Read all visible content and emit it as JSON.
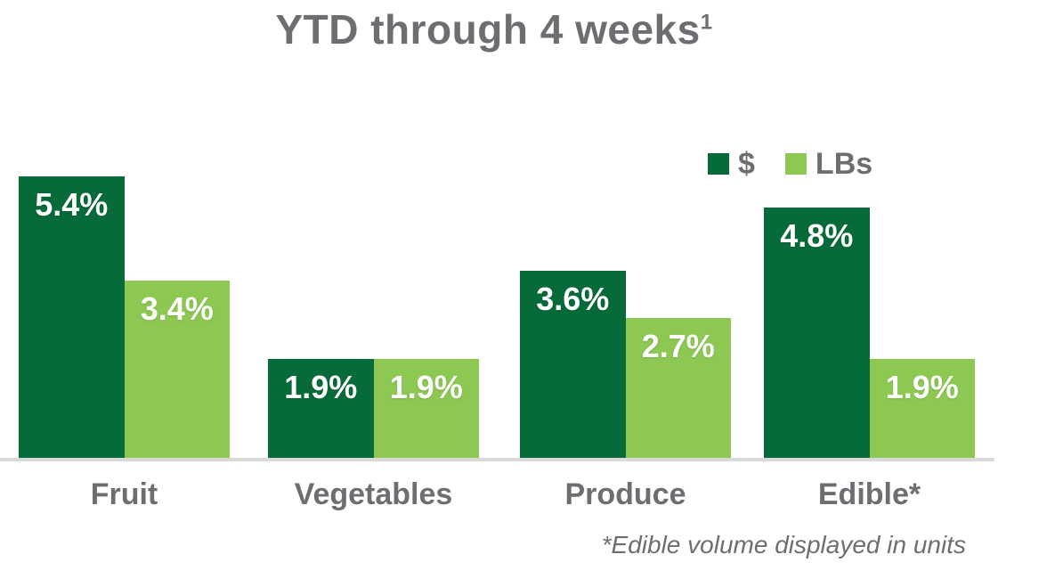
{
  "page": {
    "background": "#ffffff",
    "text_color": "#6D6E71"
  },
  "title": {
    "text": "YTD through 4 weeks",
    "superscript": "1"
  },
  "legend": {
    "position": "top-right",
    "items": [
      {
        "name": "dollars",
        "label": "$",
        "color": "#076B39"
      },
      {
        "name": "lbs",
        "label": "LBs",
        "color": "#8DC853"
      }
    ]
  },
  "footnote": "*Edible volume displayed in units",
  "chart_data": {
    "type": "bar",
    "title": "YTD through 4 weeks¹",
    "categories": [
      "Fruit",
      "Vegetables",
      "Produce",
      "Edible*"
    ],
    "series": [
      {
        "name": "$",
        "color": "#076B39",
        "values": [
          5.4,
          1.9,
          3.6,
          4.8
        ],
        "labels": [
          "5.4%",
          "1.9%",
          "3.6%",
          "4.8%"
        ]
      },
      {
        "name": "LBs",
        "color": "#8DC853",
        "values": [
          3.4,
          1.9,
          2.7,
          1.9
        ],
        "labels": [
          "3.4%",
          "1.9%",
          "2.7%",
          "1.9%"
        ]
      }
    ],
    "unit": "%",
    "xlabel": "",
    "ylabel": "",
    "ylim": [
      0,
      5.6
    ],
    "grid": false,
    "y_axis_visible": false,
    "legend_position": "top-right",
    "value_label_color": "#ffffff",
    "axis_line_color": "#D9D9D9",
    "text_color": "#6D6E71"
  }
}
